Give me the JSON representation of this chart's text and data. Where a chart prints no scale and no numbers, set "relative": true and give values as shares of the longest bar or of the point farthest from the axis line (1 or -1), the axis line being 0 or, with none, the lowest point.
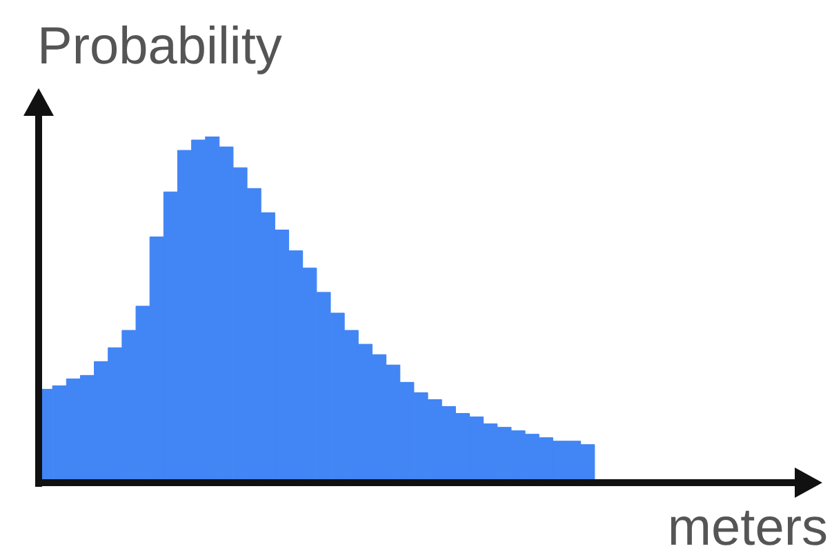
{
  "chart_data": {
    "type": "bar",
    "relative": true,
    "ylabel": "Probability",
    "xlabel": "meters",
    "color": "#4285f4",
    "grid": false,
    "legend": false,
    "categories": [
      null,
      null,
      null,
      null,
      null,
      null,
      null,
      null,
      null,
      null,
      null,
      null,
      null,
      null,
      null,
      null,
      null,
      null,
      null,
      null,
      null,
      null,
      null,
      null,
      null,
      null,
      null,
      null,
      null,
      null,
      null,
      null,
      null,
      null,
      null,
      null,
      null,
      null,
      null,
      null
    ],
    "values": [
      0.27,
      0.28,
      0.3,
      0.31,
      0.35,
      0.39,
      0.44,
      0.51,
      0.71,
      0.84,
      0.96,
      0.99,
      1,
      0.97,
      0.91,
      0.85,
      0.78,
      0.73,
      0.67,
      0.62,
      0.55,
      0.49,
      0.44,
      0.4,
      0.37,
      0.34,
      0.29,
      0.26,
      0.24,
      0.22,
      0.2,
      0.19,
      0.17,
      0.16,
      0.15,
      0.14,
      0.13,
      0.12,
      0.12,
      0.11
    ]
  }
}
